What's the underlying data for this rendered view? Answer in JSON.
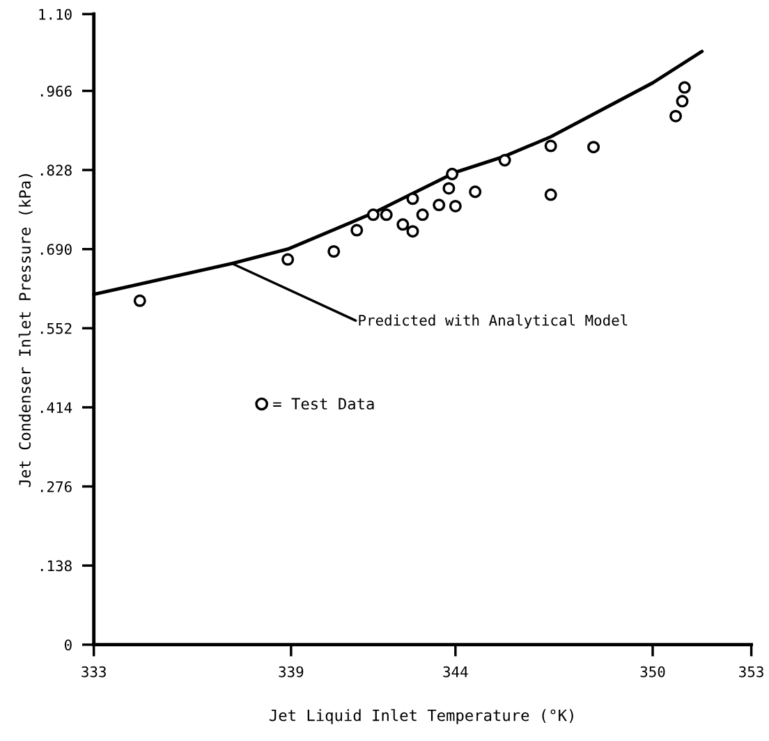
{
  "chart_data": {
    "type": "scatter",
    "xlabel": "Jet Liquid Inlet Temperature (°K)",
    "ylabel": "Jet Condenser Inlet Pressure (kPa)",
    "xlim": [
      333,
      353
    ],
    "xticks": [
      333,
      339,
      344,
      350,
      353
    ],
    "ylim": [
      0,
      1.1
    ],
    "yticks": [
      {
        "value": 0,
        "label": "0"
      },
      {
        "value": 0.138,
        "label": ".138"
      },
      {
        "value": 0.276,
        "label": ".276"
      },
      {
        "value": 0.414,
        "label": ".414"
      },
      {
        "value": 0.552,
        "label": ".552"
      },
      {
        "value": 0.69,
        "label": ".690"
      },
      {
        "value": 0.828,
        "label": ".828"
      },
      {
        "value": 0.966,
        "label": ".966"
      },
      {
        "value": 1.1,
        "label": "1.10"
      }
    ],
    "grid": false,
    "legend": "center left",
    "series": [
      {
        "name": "= Test Data",
        "marker": "circle",
        "color": "#000000",
        "x": [
          334.4,
          338.9,
          340.3,
          341.0,
          341.5,
          341.9,
          342.4,
          342.7,
          342.7,
          343.0,
          343.5,
          343.8,
          343.9,
          344.0,
          344.6,
          345.5,
          346.9,
          346.9,
          348.2,
          350.7,
          350.9,
          350.97
        ],
        "values": [
          0.6,
          0.672,
          0.686,
          0.723,
          0.75,
          0.75,
          0.733,
          0.721,
          0.778,
          0.75,
          0.767,
          0.796,
          0.821,
          0.765,
          0.79,
          0.845,
          0.87,
          0.785,
          0.868,
          0.922,
          0.948,
          0.972
        ]
      },
      {
        "type": "line",
        "color": "#000000",
        "line_style": "solid",
        "marker": "none",
        "x": [
          333,
          334.4,
          337.2,
          338.9,
          341.5,
          344,
          345.5,
          346.9,
          350,
          351.5
        ],
        "values": [
          0.611,
          0.629,
          0.665,
          0.69,
          0.753,
          0.824,
          0.852,
          0.886,
          0.98,
          1.035
        ]
      }
    ],
    "annotations": [
      {
        "text": "Predicted with Analytical Model",
        "x": 337.2,
        "y": 0.665
      }
    ]
  }
}
